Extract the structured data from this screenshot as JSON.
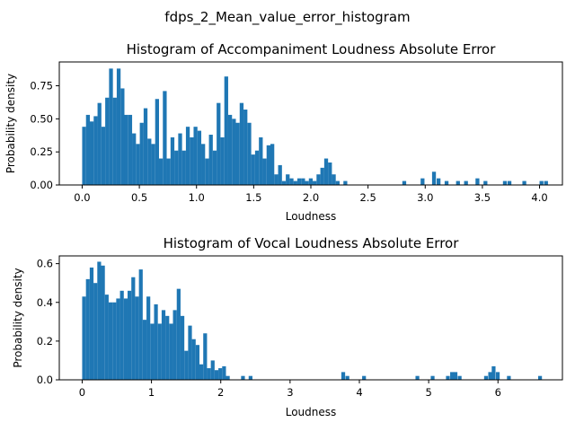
{
  "figure": {
    "suptitle": "fdps_2_Mean_value_error_histogram"
  },
  "chart_data": [
    {
      "type": "bar",
      "title": "Histogram of Accompaniment Loudness Absolute Error",
      "xlabel": "Loudness",
      "ylabel": "Probability density",
      "xlim": [
        -0.2,
        4.2
      ],
      "ylim": [
        0,
        0.93
      ],
      "xticks": [
        0.0,
        0.5,
        1.0,
        1.5,
        2.0,
        2.5,
        3.0,
        3.5,
        4.0
      ],
      "xtick_labels": [
        "0.0",
        "0.5",
        "1.0",
        "1.5",
        "2.0",
        "2.5",
        "3.0",
        "3.5",
        "4.0"
      ],
      "yticks": [
        0.0,
        0.25,
        0.5,
        0.75
      ],
      "ytick_labels": [
        "0.00",
        "0.25",
        "0.50",
        "0.75"
      ],
      "bar_color": "#1f77b4",
      "grid": false,
      "bin_start": 0.0,
      "bin_width": 0.0336,
      "values": [
        0.44,
        0.53,
        0.48,
        0.52,
        0.62,
        0.44,
        0.66,
        0.88,
        0.66,
        0.88,
        0.73,
        0.53,
        0.53,
        0.39,
        0.31,
        0.47,
        0.58,
        0.35,
        0.31,
        0.65,
        0.2,
        0.71,
        0.2,
        0.36,
        0.26,
        0.39,
        0.26,
        0.44,
        0.36,
        0.44,
        0.41,
        0.31,
        0.2,
        0.38,
        0.26,
        0.62,
        0.36,
        0.82,
        0.53,
        0.5,
        0.47,
        0.62,
        0.57,
        0.47,
        0.23,
        0.26,
        0.36,
        0.2,
        0.3,
        0.31,
        0.08,
        0.15,
        0.03,
        0.08,
        0.05,
        0.03,
        0.05,
        0.05,
        0.03,
        0.05,
        0.03,
        0.08,
        0.13,
        0.2,
        0.17,
        0.08,
        0.03,
        0.0,
        0.03,
        0.0,
        0.0,
        0.0,
        0.0,
        0.0,
        0.0,
        0.0,
        0.0,
        0.0,
        0.0,
        0.0,
        0.0,
        0.0,
        0.0,
        0.0,
        0.0,
        0.0,
        0.0,
        0.0,
        0.0,
        0.0,
        0.0,
        0.0,
        0.0,
        0.0,
        0.0,
        0.0,
        0.0,
        0.0,
        0.0,
        0.0,
        0.0,
        0.0,
        0.0,
        0.0,
        0.0,
        0.0,
        0.0,
        0.0,
        0.0,
        0.0,
        0.0,
        0.0,
        0.0,
        0.0,
        0.0,
        0.0,
        0.0,
        0.0,
        0.0,
        0.0,
        0.0
      ],
      "extra_bars": [
        {
          "x": 2.8,
          "y": 0.03
        },
        {
          "x": 2.96,
          "y": 0.05
        },
        {
          "x": 3.06,
          "y": 0.1
        },
        {
          "x": 3.1,
          "y": 0.05
        },
        {
          "x": 3.17,
          "y": 0.03
        },
        {
          "x": 3.27,
          "y": 0.03
        },
        {
          "x": 3.34,
          "y": 0.03
        },
        {
          "x": 3.44,
          "y": 0.05
        },
        {
          "x": 3.51,
          "y": 0.03
        },
        {
          "x": 3.68,
          "y": 0.03
        },
        {
          "x": 3.72,
          "y": 0.03
        },
        {
          "x": 3.85,
          "y": 0.03
        },
        {
          "x": 4.0,
          "y": 0.03
        },
        {
          "x": 4.04,
          "y": 0.03
        }
      ]
    },
    {
      "type": "bar",
      "title": "Histogram of Vocal Loudness Absolute Error",
      "xlabel": "Loudness",
      "ylabel": "Probability density",
      "xlim": [
        -0.33,
        6.93
      ],
      "ylim": [
        0,
        0.64
      ],
      "xticks": [
        0,
        1,
        2,
        3,
        4,
        5,
        6
      ],
      "xtick_labels": [
        "0",
        "1",
        "2",
        "3",
        "4",
        "5",
        "6"
      ],
      "yticks": [
        0.0,
        0.2,
        0.4,
        0.6
      ],
      "ytick_labels": [
        "0.0",
        "0.2",
        "0.4",
        "0.6"
      ],
      "bar_color": "#1f77b4",
      "grid": false,
      "bin_start": 0.0,
      "bin_width": 0.0546,
      "values": [
        0.43,
        0.52,
        0.58,
        0.5,
        0.61,
        0.59,
        0.44,
        0.4,
        0.4,
        0.42,
        0.46,
        0.42,
        0.46,
        0.53,
        0.43,
        0.57,
        0.31,
        0.43,
        0.29,
        0.39,
        0.29,
        0.36,
        0.33,
        0.29,
        0.36,
        0.47,
        0.33,
        0.15,
        0.28,
        0.21,
        0.18,
        0.08,
        0.24,
        0.06,
        0.1,
        0.05,
        0.06,
        0.07,
        0.02,
        0.0,
        0.0,
        0.0,
        0.02,
        0.0,
        0.02,
        0.0,
        0.0,
        0.0,
        0.0,
        0.0,
        0.0
      ],
      "extra_bars": [
        {
          "x": 3.74,
          "y": 0.04
        },
        {
          "x": 3.8,
          "y": 0.02
        },
        {
          "x": 4.04,
          "y": 0.02
        },
        {
          "x": 4.81,
          "y": 0.02
        },
        {
          "x": 5.03,
          "y": 0.02
        },
        {
          "x": 5.25,
          "y": 0.02
        },
        {
          "x": 5.31,
          "y": 0.04
        },
        {
          "x": 5.36,
          "y": 0.04
        },
        {
          "x": 5.42,
          "y": 0.02
        },
        {
          "x": 5.8,
          "y": 0.02
        },
        {
          "x": 5.86,
          "y": 0.04
        },
        {
          "x": 5.91,
          "y": 0.07
        },
        {
          "x": 5.97,
          "y": 0.04
        },
        {
          "x": 6.13,
          "y": 0.02
        },
        {
          "x": 6.58,
          "y": 0.02
        }
      ]
    }
  ]
}
